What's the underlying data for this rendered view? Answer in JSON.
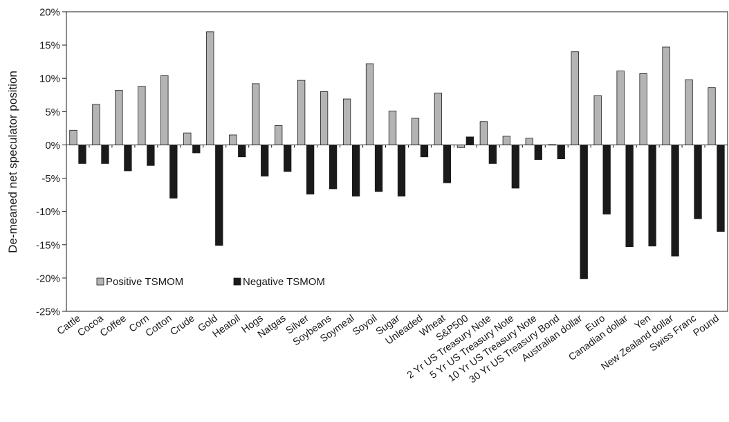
{
  "chart_data": {
    "type": "bar",
    "title": "",
    "xlabel": "",
    "ylabel": "De-meaned net speculator position",
    "ylim": [
      -25,
      20
    ],
    "yticks": [
      20,
      15,
      10,
      5,
      0,
      -5,
      -10,
      -15,
      -20,
      -25
    ],
    "ytick_labels": [
      "20%",
      "15%",
      "10%",
      "5%",
      "0%",
      "-5%",
      "-10%",
      "-15%",
      "-20%",
      "-25%"
    ],
    "legend_position": "lower-left",
    "grid": false,
    "categories": [
      "Cattle",
      "Cocoa",
      "Coffee",
      "Corn",
      "Cotton",
      "Crude",
      "Gold",
      "Heatoil",
      "Hogs",
      "Natgas",
      "Silver",
      "Soybeans",
      "Soymeal",
      "Soyoil",
      "Sugar",
      "Unleaded",
      "Wheat",
      "S&P500",
      "2 Yr US Treasury Note",
      "5 Yr US Treasury Note",
      "10 Yr US Treasury Note",
      "30 Yr US Treasury Bond",
      "Australian dollar",
      "Euro",
      "Canadian dollar",
      "Yen",
      "New Zealand dollar",
      "Swiss Franc",
      "Pound"
    ],
    "series": [
      {
        "name": "Positive TSMOM",
        "color": "#b4b4b4",
        "values": [
          2.2,
          6.1,
          8.2,
          8.8,
          10.4,
          1.8,
          17.0,
          1.5,
          9.2,
          2.9,
          9.7,
          8.0,
          6.9,
          12.2,
          5.1,
          4.0,
          7.8,
          -0.4,
          3.5,
          1.3,
          1.0,
          0.05,
          14.0,
          7.4,
          11.1,
          10.7,
          14.7,
          9.8,
          8.6
        ]
      },
      {
        "name": "Negative TSMOM",
        "color": "#1a1a1a",
        "values": [
          -2.8,
          -2.8,
          -3.9,
          -3.1,
          -8.0,
          -1.2,
          -15.1,
          -1.8,
          -4.7,
          -4.0,
          -7.4,
          -6.6,
          -7.7,
          -7.0,
          -7.7,
          -1.8,
          -5.7,
          1.2,
          -2.8,
          -6.5,
          -2.2,
          -2.1,
          -20.1,
          -10.4,
          -15.3,
          -15.2,
          -16.7,
          -11.1,
          -13.0
        ]
      }
    ]
  }
}
